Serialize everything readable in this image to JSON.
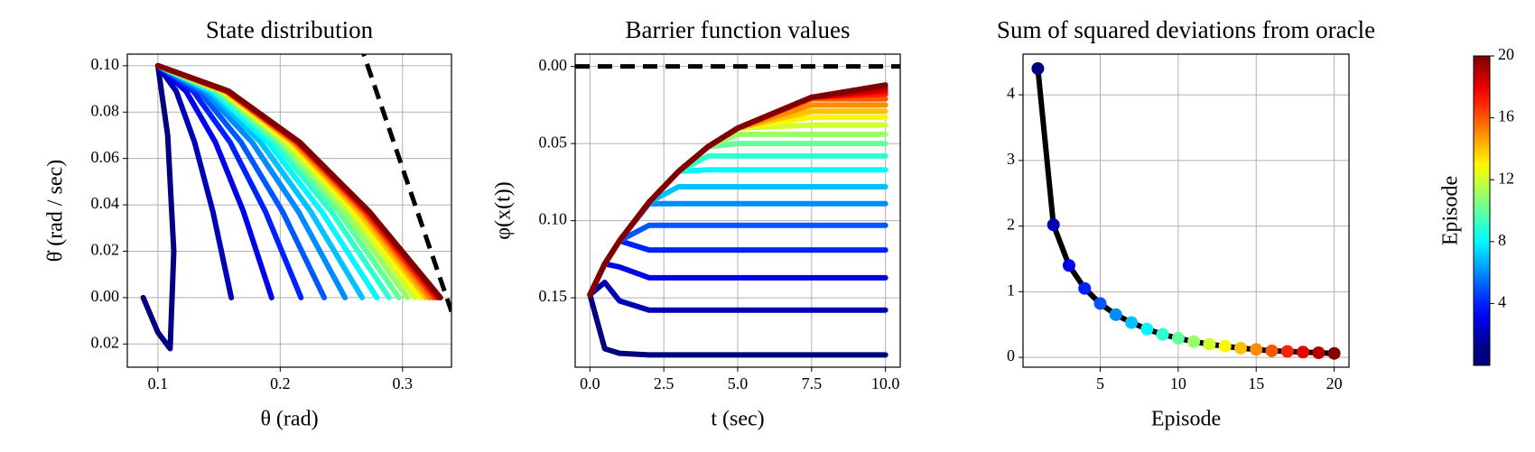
{
  "chart_data": [
    {
      "type": "line",
      "title": "State distribution",
      "xlabel": "θ (rad)",
      "ylabel": "θ̇ (rad / sec)",
      "xlim": [
        0.075,
        0.34
      ],
      "ylim": [
        -0.03,
        0.105
      ],
      "xticks": [
        0.1,
        0.2,
        0.3
      ],
      "yticks": [
        {
          "value": 0.1,
          "label": "0.10"
        },
        0.08,
        0.06,
        0.04,
        0.02,
        {
          "value": 0,
          "label": "0.00"
        },
        {
          "value": -0.02,
          "label": "0.02"
        }
      ],
      "grid": true,
      "boundary": {
        "color": "#000000",
        "x": [
          0.265,
          0.34
        ],
        "values": [
          0.11,
          -0.006
        ]
      },
      "series": [
        {
          "color": "#000080",
          "x": [
            0.088,
            0.1,
            0.11,
            0.113,
            0.108,
            0.1
          ],
          "values": [
            0,
            -0.015,
            -0.022,
            0.02,
            0.07,
            0.1
          ]
        },
        {
          "color": "#0000b5",
          "x": [
            0.1,
            0.115,
            0.13,
            0.145,
            0.16
          ],
          "values": [
            0.1,
            0.089,
            0.067,
            0.037,
            0
          ]
        },
        {
          "color": "#0000eb",
          "x": [
            0.1,
            0.123,
            0.147,
            0.17,
            0.193
          ],
          "values": [
            0.1,
            0.089,
            0.067,
            0.037,
            0
          ]
        },
        {
          "color": "#0021ff",
          "x": [
            0.1,
            0.129,
            0.159,
            0.188,
            0.217
          ],
          "values": [
            0.1,
            0.089,
            0.067,
            0.037,
            0
          ]
        },
        {
          "color": "#0057ff",
          "x": [
            0.1,
            0.134,
            0.168,
            0.202,
            0.236
          ],
          "values": [
            0.1,
            0.089,
            0.067,
            0.037,
            0
          ]
        },
        {
          "color": "#008cff",
          "x": [
            0.1,
            0.138,
            0.177,
            0.215,
            0.253
          ],
          "values": [
            0.1,
            0.089,
            0.067,
            0.037,
            0
          ]
        },
        {
          "color": "#00c2ff",
          "x": [
            0.1,
            0.142,
            0.184,
            0.225,
            0.267
          ],
          "values": [
            0.1,
            0.089,
            0.067,
            0.037,
            0
          ]
        },
        {
          "color": "#00f8ff",
          "x": [
            0.1,
            0.145,
            0.19,
            0.234,
            0.279
          ],
          "values": [
            0.1,
            0.089,
            0.067,
            0.037,
            0
          ]
        },
        {
          "color": "#2effd1",
          "x": [
            0.1,
            0.147,
            0.195,
            0.242,
            0.289
          ],
          "values": [
            0.1,
            0.089,
            0.067,
            0.037,
            0
          ]
        },
        {
          "color": "#63ff9c",
          "x": [
            0.1,
            0.149,
            0.199,
            0.248,
            0.297
          ],
          "values": [
            0.1,
            0.089,
            0.067,
            0.037,
            0
          ]
        },
        {
          "color": "#99ff66",
          "x": [
            0.1,
            0.151,
            0.202,
            0.253,
            0.304
          ],
          "values": [
            0.1,
            0.089,
            0.067,
            0.037,
            0
          ]
        },
        {
          "color": "#d1ff2e",
          "x": [
            0.1,
            0.153,
            0.205,
            0.258,
            0.31
          ],
          "values": [
            0.1,
            0.089,
            0.067,
            0.037,
            0
          ]
        },
        {
          "color": "#fff700",
          "x": [
            0.1,
            0.154,
            0.208,
            0.261,
            0.315
          ],
          "values": [
            0.1,
            0.089,
            0.067,
            0.037,
            0
          ]
        },
        {
          "color": "#ffc200",
          "x": [
            0.1,
            0.155,
            0.21,
            0.264,
            0.319
          ],
          "values": [
            0.1,
            0.089,
            0.067,
            0.037,
            0
          ]
        },
        {
          "color": "#ff8c00",
          "x": [
            0.1,
            0.156,
            0.211,
            0.267,
            0.322
          ],
          "values": [
            0.1,
            0.089,
            0.067,
            0.037,
            0
          ]
        },
        {
          "color": "#ff5700",
          "x": [
            0.1,
            0.156,
            0.213,
            0.269,
            0.325
          ],
          "values": [
            0.1,
            0.089,
            0.067,
            0.037,
            0
          ]
        },
        {
          "color": "#ff2100",
          "x": [
            0.1,
            0.157,
            0.214,
            0.27,
            0.327
          ],
          "values": [
            0.1,
            0.089,
            0.067,
            0.037,
            0
          ]
        },
        {
          "color": "#eb0000",
          "x": [
            0.1,
            0.157,
            0.215,
            0.272,
            0.329
          ],
          "values": [
            0.1,
            0.089,
            0.067,
            0.037,
            0
          ]
        },
        {
          "color": "#b50000",
          "x": [
            0.1,
            0.158,
            0.215,
            0.273,
            0.33
          ],
          "values": [
            0.1,
            0.089,
            0.067,
            0.037,
            0
          ]
        },
        {
          "color": "#800000",
          "x": [
            0.1,
            0.158,
            0.216,
            0.273,
            0.331
          ],
          "values": [
            0.1,
            0.089,
            0.067,
            0.037,
            0
          ]
        }
      ]
    },
    {
      "type": "line",
      "title": "Barrier function values",
      "xlabel": "t (sec)",
      "ylabel": "φ(x(t))",
      "xlim": [
        -0.5,
        10.5
      ],
      "ylim": [
        -0.195,
        0.008
      ],
      "xticks": [
        {
          "value": 0,
          "label": "0.0"
        },
        2.5,
        {
          "value": 5,
          "label": "5.0"
        },
        7.5,
        {
          "value": 10,
          "label": "10.0"
        }
      ],
      "yticks": [
        {
          "value": 0,
          "label": "0.00"
        },
        {
          "value": -0.05,
          "label": "0.05"
        },
        {
          "value": -0.1,
          "label": "0.10"
        },
        {
          "value": -0.15,
          "label": "0.15"
        }
      ],
      "grid": true,
      "boundary": {
        "color": "#000000",
        "x": [
          -0.5,
          10.5
        ],
        "values": [
          0,
          0
        ]
      },
      "x": [
        0,
        0.5,
        1,
        2,
        3,
        4,
        5,
        7.5,
        10
      ],
      "series": [
        {
          "color": "#000080",
          "values": [
            -0.148,
            -0.183,
            -0.186,
            -0.187,
            -0.187,
            -0.187,
            -0.187,
            -0.187,
            -0.187
          ]
        },
        {
          "color": "#0000b5",
          "values": [
            -0.148,
            -0.14,
            -0.152,
            -0.158,
            -0.158,
            -0.158,
            -0.158,
            -0.158,
            -0.158
          ]
        },
        {
          "color": "#0000eb",
          "values": [
            -0.148,
            -0.128,
            -0.13,
            -0.137,
            -0.137,
            -0.137,
            -0.137,
            -0.137,
            -0.137
          ]
        },
        {
          "color": "#0021ff",
          "values": [
            -0.148,
            -0.128,
            -0.113,
            -0.119,
            -0.119,
            -0.119,
            -0.119,
            -0.119,
            -0.119
          ]
        },
        {
          "color": "#0057ff",
          "values": [
            -0.148,
            -0.128,
            -0.113,
            -0.103,
            -0.103,
            -0.103,
            -0.103,
            -0.103,
            -0.103
          ]
        },
        {
          "color": "#008cff",
          "values": [
            -0.148,
            -0.128,
            -0.113,
            -0.089,
            -0.089,
            -0.089,
            -0.089,
            -0.089,
            -0.089
          ]
        },
        {
          "color": "#00c2ff",
          "values": [
            -0.148,
            -0.128,
            -0.113,
            -0.088,
            -0.078,
            -0.078,
            -0.078,
            -0.078,
            -0.078
          ]
        },
        {
          "color": "#00f8ff",
          "values": [
            -0.148,
            -0.128,
            -0.113,
            -0.088,
            -0.068,
            -0.067,
            -0.067,
            -0.067,
            -0.067
          ]
        },
        {
          "color": "#2effd1",
          "values": [
            -0.148,
            -0.128,
            -0.113,
            -0.088,
            -0.068,
            -0.058,
            -0.058,
            -0.058,
            -0.058
          ]
        },
        {
          "color": "#63ff9c",
          "values": [
            -0.148,
            -0.128,
            -0.113,
            -0.088,
            -0.068,
            -0.052,
            -0.05,
            -0.05,
            -0.05
          ]
        },
        {
          "color": "#99ff66",
          "values": [
            -0.148,
            -0.128,
            -0.113,
            -0.088,
            -0.068,
            -0.052,
            -0.044,
            -0.044,
            -0.044
          ]
        },
        {
          "color": "#d1ff2e",
          "values": [
            -0.148,
            -0.128,
            -0.113,
            -0.088,
            -0.068,
            -0.052,
            -0.04,
            -0.038,
            -0.038
          ]
        },
        {
          "color": "#fff700",
          "values": [
            -0.148,
            -0.128,
            -0.113,
            -0.088,
            -0.068,
            -0.052,
            -0.04,
            -0.033,
            -0.033
          ]
        },
        {
          "color": "#ffc200",
          "values": [
            -0.148,
            -0.128,
            -0.113,
            -0.088,
            -0.068,
            -0.052,
            -0.04,
            -0.029,
            -0.029
          ]
        },
        {
          "color": "#ff8c00",
          "values": [
            -0.148,
            -0.128,
            -0.113,
            -0.088,
            -0.068,
            -0.052,
            -0.04,
            -0.025,
            -0.025
          ]
        },
        {
          "color": "#ff5700",
          "values": [
            -0.148,
            -0.128,
            -0.113,
            -0.088,
            -0.068,
            -0.052,
            -0.04,
            -0.021,
            -0.021
          ]
        },
        {
          "color": "#ff2100",
          "values": [
            -0.148,
            -0.128,
            -0.113,
            -0.088,
            -0.068,
            -0.052,
            -0.04,
            -0.02,
            -0.018
          ]
        },
        {
          "color": "#eb0000",
          "values": [
            -0.148,
            -0.128,
            -0.113,
            -0.088,
            -0.068,
            -0.052,
            -0.04,
            -0.02,
            -0.016
          ]
        },
        {
          "color": "#b50000",
          "values": [
            -0.148,
            -0.128,
            -0.113,
            -0.088,
            -0.068,
            -0.052,
            -0.04,
            -0.02,
            -0.014
          ]
        },
        {
          "color": "#800000",
          "values": [
            -0.148,
            -0.128,
            -0.113,
            -0.088,
            -0.068,
            -0.052,
            -0.04,
            -0.02,
            -0.012
          ]
        }
      ]
    },
    {
      "type": "line",
      "title": "Sum of squared deviations from oracle",
      "xlabel": "Episode",
      "xlim": [
        0.05,
        20.95
      ],
      "ylim": [
        -0.15,
        4.62
      ],
      "xticks": [
        5,
        10,
        15,
        20
      ],
      "yticks": [
        0,
        1,
        2,
        3,
        4
      ],
      "grid": true,
      "color": "#000000",
      "x": [
        1,
        2,
        3,
        4,
        5,
        6,
        7,
        8,
        9,
        10,
        11,
        12,
        13,
        14,
        15,
        16,
        17,
        18,
        19,
        20
      ],
      "values": [
        4.4,
        2.02,
        1.4,
        1.05,
        0.82,
        0.65,
        0.53,
        0.43,
        0.35,
        0.29,
        0.24,
        0.2,
        0.17,
        0.14,
        0.12,
        0.1,
        0.09,
        0.08,
        0.07,
        0.06
      ],
      "marker_colors": [
        "#000080",
        "#0000b5",
        "#0000eb",
        "#0021ff",
        "#0057ff",
        "#008cff",
        "#00c2ff",
        "#00f8ff",
        "#2effd1",
        "#63ff9c",
        "#99ff66",
        "#d1ff2e",
        "#fff700",
        "#ffc200",
        "#ff8c00",
        "#ff5700",
        "#ff2100",
        "#eb0000",
        "#b50000",
        "#800000"
      ],
      "colorbar": {
        "label": "Episode",
        "lim": [
          0,
          20
        ],
        "ticks": [
          4,
          8,
          12,
          16,
          20
        ]
      }
    }
  ]
}
